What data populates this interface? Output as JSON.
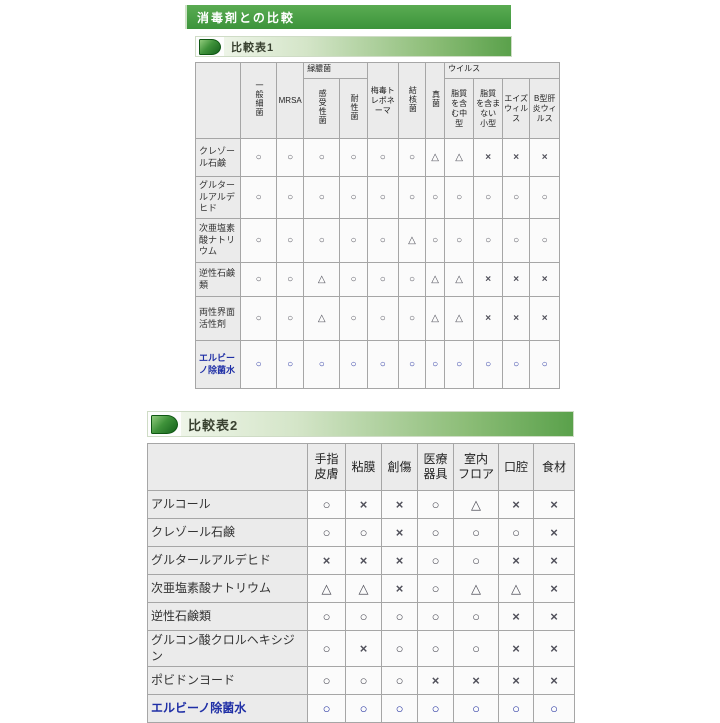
{
  "page_title": "消毒剤との比較",
  "colors": {
    "accent_green": "#3c943b",
    "bar_gradient_end": "#5aa14b",
    "header_cell_gray": "#ebebeb",
    "symbol_gray": "#50505a",
    "highlight_blue": "#2432a0"
  },
  "symbols_legend": {
    "good": "○",
    "fair": "△",
    "poor": "×"
  },
  "tables": [
    {
      "bar_label": "比較表1",
      "groups": {
        "ryokunokin": "緑膿菌",
        "virus": "ウイルス"
      },
      "columns": [
        {
          "label": "一般細菌",
          "vertical": true
        },
        {
          "label": "MRSA"
        },
        {
          "label": "感受性菌",
          "vertical": true,
          "group": "ryokunokin"
        },
        {
          "label": "耐性菌",
          "vertical": true,
          "group": "ryokunokin"
        },
        {
          "label": "梅毒ト\nレポネ\nーマ"
        },
        {
          "label": "結核菌",
          "vertical": true
        },
        {
          "label": "真菌",
          "vertical": true
        },
        {
          "label": "脂質\nを含\nむ中\n型",
          "group": "virus"
        },
        {
          "label": "脂質\nを含ま\nない\n小型",
          "group": "virus"
        },
        {
          "label": "エイズ\nウィル\nス",
          "group": "virus"
        },
        {
          "label": "B型肝\n炎ウィ\nルス",
          "group": "virus"
        }
      ],
      "rows": [
        {
          "label": "クレゾール石鹸",
          "values": [
            "○",
            "○",
            "○",
            "○",
            "○",
            "○",
            "△",
            "△",
            "×",
            "×",
            "×"
          ],
          "highlight": false
        },
        {
          "label": "グルタールアルデヒド",
          "values": [
            "○",
            "○",
            "○",
            "○",
            "○",
            "○",
            "○",
            "○",
            "○",
            "○",
            "○"
          ],
          "highlight": false
        },
        {
          "label": "次亜塩素酸ナトリウム",
          "values": [
            "○",
            "○",
            "○",
            "○",
            "○",
            "△",
            "○",
            "○",
            "○",
            "○",
            "○"
          ],
          "highlight": false
        },
        {
          "label": "逆性石鹸類",
          "values": [
            "○",
            "○",
            "△",
            "○",
            "○",
            "○",
            "△",
            "△",
            "×",
            "×",
            "×"
          ],
          "highlight": false
        },
        {
          "label": "両性界面活性剤",
          "values": [
            "○",
            "○",
            "△",
            "○",
            "○",
            "○",
            "△",
            "△",
            "×",
            "×",
            "×"
          ],
          "highlight": false
        },
        {
          "label": "エルビーノ除菌水",
          "values": [
            "○",
            "○",
            "○",
            "○",
            "○",
            "○",
            "○",
            "○",
            "○",
            "○",
            "○"
          ],
          "highlight": true
        }
      ]
    },
    {
      "bar_label": "比較表2",
      "groups": {},
      "columns": [
        {
          "label": "手指\n皮膚"
        },
        {
          "label": "粘膜"
        },
        {
          "label": "創傷"
        },
        {
          "label": "医療\n器具"
        },
        {
          "label": "室内\nフロア"
        },
        {
          "label": "口腔"
        },
        {
          "label": "食材"
        }
      ],
      "rows": [
        {
          "label": "アルコール",
          "values": [
            "○",
            "×",
            "×",
            "○",
            "△",
            "×",
            "×"
          ],
          "highlight": false
        },
        {
          "label": "クレゾール石鹸",
          "values": [
            "○",
            "○",
            "×",
            "○",
            "○",
            "○",
            "×"
          ],
          "highlight": false
        },
        {
          "label": "グルタールアルデヒド",
          "values": [
            "×",
            "×",
            "×",
            "○",
            "○",
            "×",
            "×"
          ],
          "highlight": false
        },
        {
          "label": "次亜塩素酸ナトリウム",
          "values": [
            "△",
            "△",
            "×",
            "○",
            "△",
            "△",
            "×"
          ],
          "highlight": false
        },
        {
          "label": "逆性石鹸類",
          "values": [
            "○",
            "○",
            "○",
            "○",
            "○",
            "×",
            "×"
          ],
          "highlight": false
        },
        {
          "label": "グルコン酸クロルヘキシジン",
          "values": [
            "○",
            "×",
            "○",
            "○",
            "○",
            "×",
            "×"
          ],
          "highlight": false
        },
        {
          "label": "ポビドンヨード",
          "values": [
            "○",
            "○",
            "○",
            "×",
            "×",
            "×",
            "×"
          ],
          "highlight": false
        },
        {
          "label": "エルビーノ除菌水",
          "values": [
            "○",
            "○",
            "○",
            "○",
            "○",
            "○",
            "○"
          ],
          "highlight": true
        }
      ]
    }
  ]
}
